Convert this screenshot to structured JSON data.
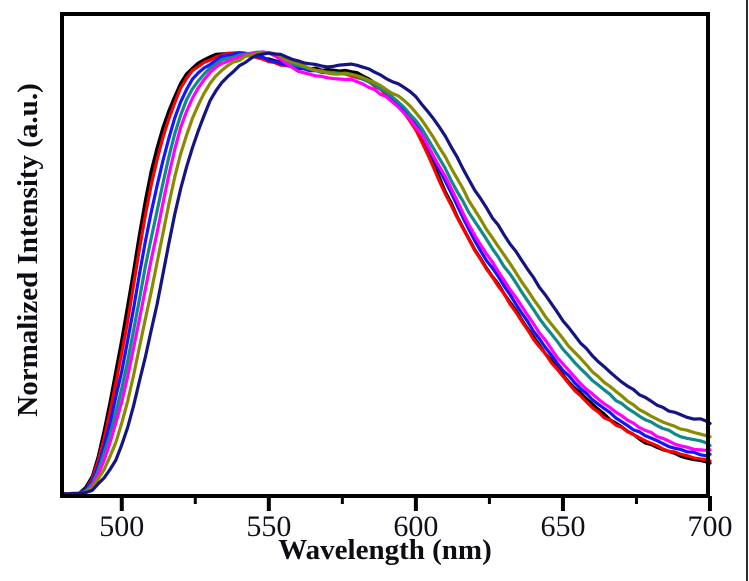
{
  "figure": {
    "xlabel": "Wavelength (nm)",
    "ylabel": "Normalized Intensity (a.u.)",
    "background_color": "#ffffff",
    "frame_color": "#000000",
    "text_color": "#0d0d14",
    "border_right_color": "#2b2b2b"
  },
  "chart_data": {
    "type": "line",
    "title": "",
    "xlabel": "Wavelength (nm)",
    "ylabel": "Normalized Intensity (a.u.)",
    "xlim": [
      479,
      700
    ],
    "ylim": [
      0,
      1.09
    ],
    "x_ticks_major": [
      500,
      550,
      600,
      650,
      700
    ],
    "x_ticks_minor": [
      525,
      575,
      625,
      675
    ],
    "y_ticks": [],
    "grid": false,
    "legend_position": "none",
    "x": [
      480,
      490,
      500,
      510,
      520,
      530,
      540,
      550,
      560,
      570,
      580,
      590,
      600,
      610,
      620,
      630,
      640,
      650,
      660,
      670,
      680,
      690,
      700
    ],
    "series": [
      {
        "name": "spectrum-1-black",
        "color": "#000000",
        "values": [
          0.0,
          0.04,
          0.35,
          0.73,
          0.93,
          0.99,
          1.0,
          0.985,
          0.97,
          0.96,
          0.955,
          0.91,
          0.83,
          0.685,
          0.555,
          0.455,
          0.355,
          0.27,
          0.2,
          0.15,
          0.11,
          0.085,
          0.07
        ]
      },
      {
        "name": "spectrum-2-red",
        "color": "#fe0000",
        "values": [
          0.0,
          0.035,
          0.32,
          0.7,
          0.92,
          0.985,
          1.0,
          0.98,
          0.965,
          0.955,
          0.945,
          0.905,
          0.825,
          0.68,
          0.55,
          0.45,
          0.35,
          0.265,
          0.195,
          0.148,
          0.112,
          0.09,
          0.075
        ]
      },
      {
        "name": "spectrum-3-blue",
        "color": "#1414ff",
        "values": [
          0.0,
          0.03,
          0.28,
          0.64,
          0.89,
          0.975,
          1.0,
          0.985,
          0.965,
          0.955,
          0.945,
          0.91,
          0.835,
          0.71,
          0.575,
          0.475,
          0.375,
          0.285,
          0.218,
          0.168,
          0.13,
          0.105,
          0.09
        ]
      },
      {
        "name": "spectrum-4-darkcyan",
        "color": "#0e8a8a",
        "values": [
          0.0,
          0.025,
          0.24,
          0.58,
          0.86,
          0.965,
          0.995,
          1.0,
          0.97,
          0.955,
          0.945,
          0.91,
          0.845,
          0.735,
          0.615,
          0.515,
          0.415,
          0.325,
          0.255,
          0.2,
          0.158,
          0.128,
          0.11
        ]
      },
      {
        "name": "spectrum-5-magenta",
        "color": "#ff00fe",
        "values": [
          0.0,
          0.02,
          0.21,
          0.53,
          0.83,
          0.955,
          0.99,
          1.0,
          0.96,
          0.945,
          0.935,
          0.9,
          0.835,
          0.72,
          0.59,
          0.49,
          0.39,
          0.3,
          0.23,
          0.18,
          0.142,
          0.115,
          0.1
        ]
      },
      {
        "name": "spectrum-6-darkyellow",
        "color": "#8b8b00",
        "values": [
          0.0,
          0.015,
          0.16,
          0.46,
          0.77,
          0.93,
          0.985,
          1.0,
          0.975,
          0.955,
          0.95,
          0.92,
          0.865,
          0.765,
          0.645,
          0.545,
          0.445,
          0.355,
          0.28,
          0.222,
          0.175,
          0.148,
          0.13
        ]
      },
      {
        "name": "spectrum-7-navy",
        "color": "#151580",
        "values": [
          0.0,
          0.01,
          0.11,
          0.37,
          0.69,
          0.89,
          0.97,
          1.0,
          0.98,
          0.965,
          0.97,
          0.94,
          0.895,
          0.805,
          0.685,
          0.585,
          0.485,
          0.39,
          0.31,
          0.25,
          0.205,
          0.175,
          0.16
        ]
      }
    ]
  }
}
